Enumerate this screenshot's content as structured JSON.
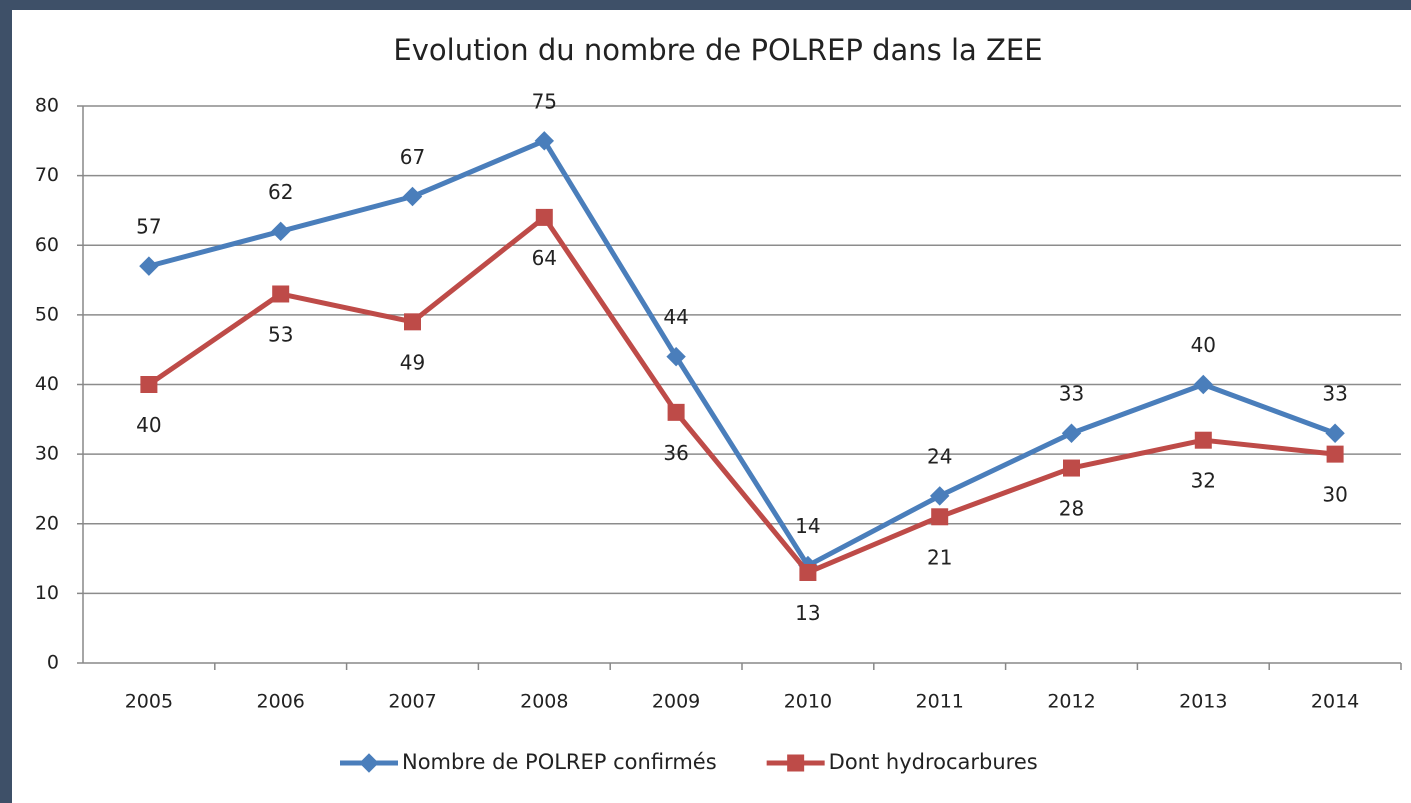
{
  "chart_data": {
    "type": "line",
    "title": "Evolution du nombre de POLREP dans la ZEE",
    "categories": [
      "2005",
      "2006",
      "2007",
      "2008",
      "2009",
      "2010",
      "2011",
      "2012",
      "2013",
      "2014"
    ],
    "series": [
      {
        "name": "Nombre de POLREP confirmés",
        "color": "#4a7ebb",
        "marker": "diamond",
        "values": [
          57,
          62,
          67,
          75,
          44,
          14,
          24,
          33,
          40,
          33
        ]
      },
      {
        "name": "Dont hydrocarbures",
        "color": "#be4b48",
        "marker": "square",
        "values": [
          40,
          53,
          49,
          64,
          36,
          13,
          21,
          28,
          32,
          30
        ]
      }
    ],
    "ylim": [
      0,
      80
    ],
    "yticks": [
      0,
      10,
      20,
      30,
      40,
      50,
      60,
      70,
      80
    ],
    "grid": true,
    "legend": "bottom"
  }
}
